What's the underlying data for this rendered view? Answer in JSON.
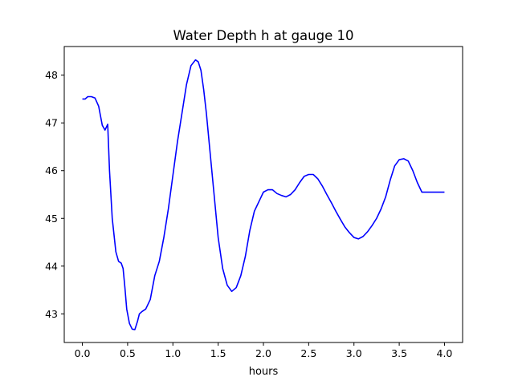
{
  "chart_data": {
    "type": "line",
    "title": "Water Depth h at gauge 10",
    "xlabel": "hours",
    "ylabel": "",
    "xlim": [
      -0.2,
      4.2
    ],
    "ylim": [
      42.4,
      48.6
    ],
    "xticks": [
      0.0,
      0.5,
      1.0,
      1.5,
      2.0,
      2.5,
      3.0,
      3.5,
      4.0
    ],
    "xtick_labels": [
      "0.0",
      "0.5",
      "1.0",
      "1.5",
      "2.0",
      "2.5",
      "3.0",
      "3.5",
      "4.0"
    ],
    "yticks": [
      43,
      44,
      45,
      46,
      47,
      48
    ],
    "ytick_labels": [
      "43",
      "44",
      "45",
      "46",
      "47",
      "48"
    ],
    "grid": false,
    "series": [
      {
        "color": "#0000ff",
        "x": [
          0.0,
          0.03,
          0.06,
          0.1,
          0.14,
          0.18,
          0.22,
          0.25,
          0.28,
          0.3,
          0.33,
          0.37,
          0.4,
          0.43,
          0.45,
          0.47,
          0.49,
          0.52,
          0.55,
          0.58,
          0.61,
          0.63,
          0.66,
          0.7,
          0.75,
          0.8,
          0.85,
          0.9,
          0.95,
          1.0,
          1.05,
          1.1,
          1.15,
          1.2,
          1.25,
          1.28,
          1.31,
          1.34,
          1.37,
          1.4,
          1.45,
          1.5,
          1.55,
          1.6,
          1.65,
          1.7,
          1.75,
          1.8,
          1.85,
          1.9,
          1.95,
          2.0,
          2.05,
          2.1,
          2.15,
          2.2,
          2.25,
          2.3,
          2.35,
          2.4,
          2.45,
          2.5,
          2.55,
          2.6,
          2.65,
          2.7,
          2.75,
          2.8,
          2.85,
          2.9,
          2.95,
          3.0,
          3.05,
          3.1,
          3.15,
          3.2,
          3.25,
          3.3,
          3.35,
          3.4,
          3.45,
          3.5,
          3.55,
          3.6,
          3.65,
          3.7,
          3.75,
          3.8,
          3.85,
          3.9,
          3.95,
          4.0
        ],
        "y": [
          47.5,
          47.5,
          47.55,
          47.55,
          47.52,
          47.35,
          46.95,
          46.85,
          46.97,
          46.0,
          45.0,
          44.3,
          44.1,
          44.06,
          43.95,
          43.55,
          43.1,
          42.8,
          42.68,
          42.67,
          42.85,
          43.0,
          43.05,
          43.1,
          43.3,
          43.8,
          44.1,
          44.6,
          45.2,
          45.9,
          46.6,
          47.2,
          47.8,
          48.2,
          48.32,
          48.28,
          48.1,
          47.7,
          47.2,
          46.6,
          45.6,
          44.6,
          43.95,
          43.6,
          43.47,
          43.55,
          43.8,
          44.2,
          44.75,
          45.15,
          45.35,
          45.55,
          45.6,
          45.6,
          45.52,
          45.48,
          45.45,
          45.5,
          45.6,
          45.75,
          45.88,
          45.92,
          45.92,
          45.83,
          45.68,
          45.5,
          45.33,
          45.15,
          44.98,
          44.82,
          44.7,
          44.6,
          44.57,
          44.62,
          44.72,
          44.85,
          45.0,
          45.2,
          45.45,
          45.8,
          46.1,
          46.23,
          46.25,
          46.2,
          46.0,
          45.75,
          45.55,
          45.55,
          45.55,
          45.55,
          45.55,
          45.55
        ]
      }
    ]
  }
}
